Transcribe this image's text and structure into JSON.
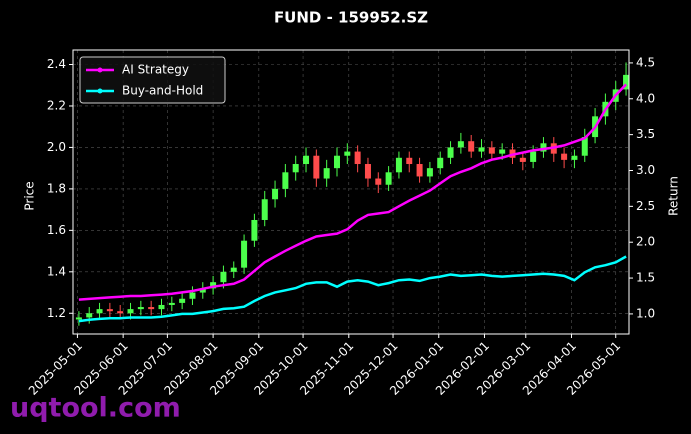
{
  "chart_data": {
    "type": "candlestick",
    "title": "FUND - 159952.SZ",
    "ylabel": "Price",
    "y2label": "Return",
    "watermark": "uqtool.com",
    "x": [
      "2025-05-02",
      "2025-05-09",
      "2025-05-16",
      "2025-05-23",
      "2025-05-30",
      "2025-06-06",
      "2025-06-13",
      "2025-06-20",
      "2025-06-27",
      "2025-07-04",
      "2025-07-11",
      "2025-07-18",
      "2025-07-25",
      "2025-08-01",
      "2025-08-08",
      "2025-08-15",
      "2025-08-22",
      "2025-08-29",
      "2025-09-05",
      "2025-09-12",
      "2025-09-19",
      "2025-09-26",
      "2025-10-03",
      "2025-10-10",
      "2025-10-17",
      "2025-10-24",
      "2025-10-31",
      "2025-11-07",
      "2025-11-14",
      "2025-11-21",
      "2025-11-28",
      "2025-12-05",
      "2025-12-12",
      "2025-12-19",
      "2025-12-26",
      "2026-01-02",
      "2026-01-09",
      "2026-01-16",
      "2026-01-23",
      "2026-01-30",
      "2026-02-06",
      "2026-02-13",
      "2026-02-20",
      "2026-02-27",
      "2026-03-06",
      "2026-03-13",
      "2026-03-20",
      "2026-03-27",
      "2026-04-03",
      "2026-04-10",
      "2026-04-17",
      "2026-04-24",
      "2026-05-01",
      "2026-05-08"
    ],
    "open": [
      1.17,
      1.18,
      1.2,
      1.22,
      1.21,
      1.2,
      1.22,
      1.23,
      1.22,
      1.24,
      1.25,
      1.27,
      1.3,
      1.32,
      1.35,
      1.4,
      1.42,
      1.55,
      1.65,
      1.75,
      1.8,
      1.88,
      1.92,
      1.96,
      1.85,
      1.9,
      1.96,
      1.98,
      1.92,
      1.85,
      1.82,
      1.88,
      1.95,
      1.92,
      1.86,
      1.9,
      1.95,
      2.0,
      2.03,
      1.98,
      2.0,
      1.97,
      1.99,
      1.95,
      1.93,
      1.98,
      2.02,
      1.97,
      1.94,
      1.96,
      2.05,
      2.15,
      2.22,
      2.28
    ],
    "high": [
      1.21,
      1.23,
      1.25,
      1.25,
      1.24,
      1.25,
      1.26,
      1.26,
      1.27,
      1.28,
      1.3,
      1.33,
      1.35,
      1.38,
      1.43,
      1.45,
      1.58,
      1.68,
      1.79,
      1.84,
      1.92,
      1.96,
      2.0,
      1.99,
      1.94,
      2.0,
      2.02,
      2.01,
      1.95,
      1.88,
      1.91,
      1.98,
      1.98,
      1.95,
      1.93,
      1.98,
      2.03,
      2.07,
      2.06,
      2.04,
      2.03,
      2.02,
      2.02,
      1.98,
      2.01,
      2.05,
      2.05,
      2.0,
      1.99,
      2.09,
      2.19,
      2.26,
      2.32,
      2.41
    ],
    "low": [
      1.14,
      1.15,
      1.17,
      1.18,
      1.17,
      1.17,
      1.19,
      1.19,
      1.19,
      1.21,
      1.22,
      1.24,
      1.27,
      1.29,
      1.32,
      1.37,
      1.39,
      1.52,
      1.62,
      1.71,
      1.76,
      1.84,
      1.88,
      1.81,
      1.81,
      1.86,
      1.92,
      1.88,
      1.81,
      1.78,
      1.79,
      1.85,
      1.88,
      1.83,
      1.83,
      1.87,
      1.92,
      1.97,
      1.95,
      1.95,
      1.94,
      1.94,
      1.92,
      1.89,
      1.9,
      1.95,
      1.93,
      1.9,
      1.9,
      1.93,
      2.02,
      2.11,
      2.18,
      2.25
    ],
    "close": [
      1.18,
      1.2,
      1.22,
      1.21,
      1.2,
      1.22,
      1.23,
      1.22,
      1.24,
      1.25,
      1.27,
      1.3,
      1.32,
      1.35,
      1.4,
      1.42,
      1.55,
      1.65,
      1.75,
      1.8,
      1.88,
      1.92,
      1.96,
      1.85,
      1.9,
      1.96,
      1.98,
      1.92,
      1.85,
      1.82,
      1.88,
      1.95,
      1.92,
      1.86,
      1.9,
      1.95,
      2.0,
      2.03,
      1.98,
      2.0,
      1.97,
      1.99,
      1.95,
      1.93,
      1.98,
      2.02,
      1.97,
      1.94,
      1.96,
      2.05,
      2.15,
      2.22,
      2.28,
      2.35
    ],
    "up_color": "#4cff4c",
    "down_color": "#ff4c4c",
    "series": [
      {
        "name": "AI Strategy",
        "color": "#ff00ff",
        "axis": "y2",
        "values": [
          1.2,
          1.21,
          1.22,
          1.23,
          1.24,
          1.25,
          1.25,
          1.26,
          1.27,
          1.28,
          1.3,
          1.32,
          1.35,
          1.38,
          1.4,
          1.42,
          1.48,
          1.6,
          1.72,
          1.8,
          1.88,
          1.95,
          2.02,
          2.08,
          2.1,
          2.12,
          2.18,
          2.3,
          2.38,
          2.4,
          2.42,
          2.5,
          2.58,
          2.65,
          2.72,
          2.82,
          2.92,
          2.98,
          3.03,
          3.1,
          3.15,
          3.18,
          3.22,
          3.25,
          3.28,
          3.3,
          3.32,
          3.35,
          3.4,
          3.45,
          3.6,
          3.85,
          4.05,
          4.2
        ]
      },
      {
        "name": "Buy-and-Hold",
        "color": "#00ffff",
        "axis": "y2",
        "values": [
          0.9,
          0.92,
          0.93,
          0.94,
          0.94,
          0.95,
          0.95,
          0.95,
          0.96,
          0.98,
          1.0,
          1.0,
          1.02,
          1.04,
          1.07,
          1.08,
          1.1,
          1.18,
          1.25,
          1.3,
          1.33,
          1.36,
          1.42,
          1.44,
          1.44,
          1.38,
          1.45,
          1.47,
          1.45,
          1.4,
          1.43,
          1.47,
          1.48,
          1.46,
          1.5,
          1.52,
          1.55,
          1.53,
          1.54,
          1.55,
          1.53,
          1.52,
          1.53,
          1.54,
          1.55,
          1.56,
          1.55,
          1.53,
          1.47,
          1.58,
          1.65,
          1.68,
          1.72,
          1.8
        ]
      }
    ],
    "xlim": [
      "2025-04-28",
      "2026-05-10"
    ],
    "xticks": [
      "2025-05-01",
      "2025-06-01",
      "2025-07-01",
      "2025-08-01",
      "2025-09-01",
      "2025-10-01",
      "2025-11-01",
      "2025-12-01",
      "2026-01-01",
      "2026-02-01",
      "2026-03-01",
      "2026-04-01",
      "2026-05-01"
    ],
    "ylim": [
      1.1,
      2.47
    ],
    "yticks": [
      {
        "value": 1.2,
        "label": "1.2"
      },
      {
        "value": 1.4,
        "label": "1.4"
      },
      {
        "value": 1.6,
        "label": "1.6"
      },
      {
        "value": 1.8,
        "label": "1.8"
      },
      {
        "value": 2.0,
        "label": "2.0"
      },
      {
        "value": 2.2,
        "label": "2.2"
      },
      {
        "value": 2.4,
        "label": "2.4"
      }
    ],
    "y2lim": [
      0.72,
      4.68
    ],
    "y2ticks": [
      {
        "value": 1.0,
        "label": "1.0"
      },
      1.5,
      {
        "value": 2.0,
        "label": "2.0"
      },
      2.5,
      {
        "value": 3.0,
        "label": "3.0"
      },
      3.5,
      {
        "value": 4.0,
        "label": "4.0"
      },
      4.5
    ],
    "grid": true,
    "legend": "upper left"
  }
}
